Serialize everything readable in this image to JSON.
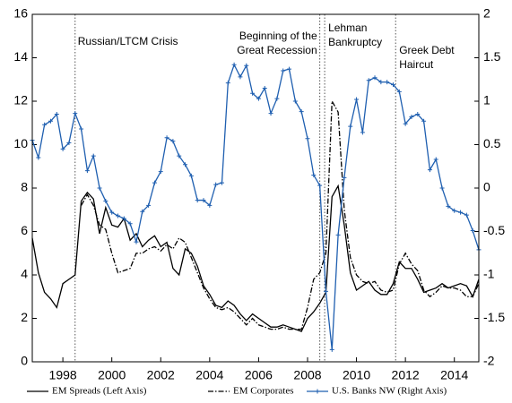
{
  "chart_data": {
    "type": "line",
    "xlim": [
      1996.75,
      2015
    ],
    "xticks": [
      1998,
      2000,
      2002,
      2004,
      2006,
      2008,
      2010,
      2012,
      2014
    ],
    "ylim": [
      0,
      16
    ],
    "yticks": [
      0,
      2,
      4,
      6,
      8,
      10,
      12,
      14,
      16
    ],
    "y2lim": [
      -2,
      2
    ],
    "y2ticks": [
      -2,
      -1.5,
      -1,
      -0.5,
      0,
      0.5,
      1,
      1.5,
      2
    ],
    "x": [
      1996.75,
      1997,
      1997.25,
      1997.5,
      1997.75,
      1998,
      1998.25,
      1998.5,
      1998.75,
      1999,
      1999.25,
      1999.5,
      1999.75,
      2000,
      2000.25,
      2000.5,
      2000.75,
      2001,
      2001.25,
      2001.5,
      2001.75,
      2002,
      2002.25,
      2002.5,
      2002.75,
      2003,
      2003.25,
      2003.5,
      2003.75,
      2004,
      2004.25,
      2004.5,
      2004.75,
      2005,
      2005.25,
      2005.5,
      2005.75,
      2006,
      2006.25,
      2006.5,
      2006.75,
      2007,
      2007.25,
      2007.5,
      2007.75,
      2008,
      2008.25,
      2008.5,
      2008.75,
      2009,
      2009.25,
      2009.5,
      2009.75,
      2010,
      2010.25,
      2010.5,
      2010.75,
      2011,
      2011.25,
      2011.5,
      2011.75,
      2012,
      2012.25,
      2012.5,
      2012.75,
      2013,
      2013.25,
      2013.5,
      2013.75,
      2014,
      2014.25,
      2014.5,
      2014.75,
      2015
    ],
    "series": [
      {
        "name": "EM Spreads (Left Axis)",
        "color": "#000000",
        "style": "solid",
        "values": [
          5.7,
          4.1,
          3.2,
          2.9,
          2.5,
          3.6,
          3.8,
          4.0,
          7.4,
          7.8,
          7.5,
          5.9,
          7.1,
          6.3,
          6.2,
          6.6,
          5.6,
          5.9,
          5.3,
          5.6,
          5.8,
          5.3,
          5.5,
          4.3,
          4.0,
          5.2,
          5.0,
          4.4,
          3.5,
          3.1,
          2.6,
          2.5,
          2.8,
          2.6,
          2.2,
          1.9,
          2.2,
          2.0,
          1.8,
          1.6,
          1.6,
          1.7,
          1.6,
          1.5,
          1.4,
          2.0,
          2.3,
          2.7,
          3.2,
          7.6,
          8.1,
          6.3,
          4.1,
          3.3,
          3.5,
          3.7,
          3.3,
          3.1,
          3.1,
          3.6,
          4.6,
          4.3,
          4.3,
          3.8,
          3.2,
          3.3,
          3.4,
          3.6,
          3.4,
          3.5,
          3.6,
          3.5,
          3.0,
          3.8
        ]
      },
      {
        "name": "EM Corporates",
        "color": "#000000",
        "style": "dashdot",
        "values": [
          null,
          null,
          null,
          null,
          null,
          null,
          null,
          null,
          7.2,
          7.7,
          7.2,
          6.3,
          6.1,
          5.0,
          4.1,
          4.2,
          4.3,
          5.0,
          5.0,
          5.2,
          5.3,
          5.1,
          5.4,
          5.2,
          5.7,
          5.5,
          4.8,
          4.1,
          3.4,
          2.9,
          2.5,
          2.4,
          2.5,
          2.3,
          2.0,
          1.7,
          2.0,
          1.7,
          1.6,
          1.5,
          1.5,
          1.6,
          1.5,
          1.5,
          1.5,
          2.5,
          3.8,
          4.1,
          5.0,
          12.0,
          11.5,
          7.0,
          4.8,
          4.0,
          3.7,
          3.6,
          3.7,
          3.3,
          3.2,
          3.3,
          4.5,
          5.0,
          4.5,
          4.2,
          3.3,
          3.0,
          3.2,
          3.5,
          3.4,
          3.4,
          3.3,
          3.0,
          3.0,
          3.6
        ]
      },
      {
        "name": "U.S. Banks NW (Right Axis)",
        "color": "#1f5fb0",
        "style": "solid",
        "marker": "plus",
        "axis": "y2",
        "values": [
          0.55,
          0.35,
          0.73,
          0.77,
          0.85,
          0.45,
          0.52,
          0.86,
          0.68,
          0.2,
          0.37,
          0.0,
          -0.15,
          -0.28,
          -0.32,
          -0.35,
          -0.41,
          -0.62,
          -0.27,
          -0.2,
          0.06,
          0.19,
          0.58,
          0.54,
          0.37,
          0.27,
          0.14,
          -0.14,
          -0.14,
          -0.2,
          0.04,
          0.06,
          1.21,
          1.42,
          1.28,
          1.41,
          1.09,
          1.03,
          1.15,
          0.86,
          1.03,
          1.35,
          1.37,
          1.0,
          0.88,
          0.57,
          0.15,
          0.03,
          -1.19,
          -1.86,
          -0.54,
          0.12,
          0.71,
          1.02,
          0.64,
          1.24,
          1.27,
          1.22,
          1.22,
          1.19,
          1.11,
          0.74,
          0.82,
          0.85,
          0.77,
          0.21,
          0.33,
          0.0,
          -0.21,
          -0.26,
          -0.28,
          -0.31,
          -0.49,
          -0.71
        ]
      }
    ],
    "annotations": [
      {
        "x": 1998.5,
        "lines": [
          "Russian/LTCM Crisis"
        ]
      },
      {
        "x": 2008.5,
        "lines": [
          "Beginning of the",
          "Great Recession"
        ]
      },
      {
        "x": 2008.7,
        "lines": [
          "Lehman",
          "Bankruptcy"
        ]
      },
      {
        "x": 2011.6,
        "lines": [
          "Greek Debt",
          "Haircut"
        ]
      }
    ]
  }
}
